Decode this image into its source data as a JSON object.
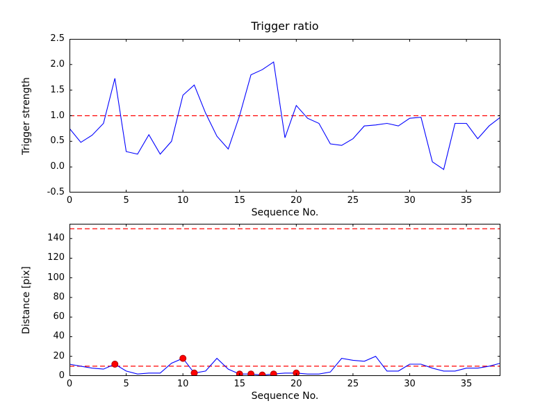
{
  "figure": {
    "bg": "#ffffff",
    "axis_color": "#000000",
    "series_color": "#0000ff",
    "threshold_color": "#ff0000",
    "marker_fill": "#ff0000",
    "marker_edge": "#aa0000"
  },
  "chart_data": [
    {
      "type": "line",
      "title": "Trigger ratio",
      "xlabel": "Sequence No.",
      "ylabel": "Trigger strength",
      "xlim": [
        0,
        38
      ],
      "ylim": [
        -0.5,
        2.5
      ],
      "grid": false,
      "legend": null,
      "xticks": [
        0,
        5,
        10,
        15,
        20,
        25,
        30,
        35
      ],
      "xticklabels": [
        "0",
        "5",
        "10",
        "15",
        "20",
        "25",
        "30",
        "35"
      ],
      "yticks": [
        -0.5,
        0.0,
        0.5,
        1.0,
        1.5,
        2.0,
        2.5
      ],
      "yticklabels": [
        "-0.5",
        "0.0",
        "0.5",
        "1.0",
        "1.5",
        "2.0",
        "2.5"
      ],
      "thresholds": [
        1.0
      ],
      "x": [
        0,
        1,
        2,
        3,
        4,
        5,
        6,
        7,
        8,
        9,
        10,
        11,
        12,
        13,
        14,
        15,
        16,
        17,
        18,
        19,
        20,
        21,
        22,
        23,
        24,
        25,
        26,
        27,
        28,
        29,
        30,
        31,
        32,
        33,
        34,
        35,
        36,
        37,
        38
      ],
      "y": [
        0.75,
        0.48,
        0.62,
        0.85,
        1.73,
        0.3,
        0.25,
        0.63,
        0.25,
        0.5,
        1.4,
        1.6,
        1.05,
        0.6,
        0.35,
        1.0,
        1.8,
        1.9,
        2.05,
        0.57,
        1.2,
        0.95,
        0.85,
        0.45,
        0.42,
        0.55,
        0.8,
        0.82,
        0.85,
        0.8,
        0.95,
        0.97,
        0.1,
        -0.05,
        0.85,
        0.85,
        0.55,
        0.8,
        0.97
      ]
    },
    {
      "type": "line",
      "title": "",
      "xlabel": "Sequence No.",
      "ylabel": "Distance [pix]",
      "xlim": [
        0,
        38
      ],
      "ylim": [
        0,
        155
      ],
      "grid": false,
      "legend": null,
      "xticks": [
        0,
        5,
        10,
        15,
        20,
        25,
        30,
        35
      ],
      "xticklabels": [
        "0",
        "5",
        "10",
        "15",
        "20",
        "25",
        "30",
        "35"
      ],
      "yticks": [
        0,
        20,
        40,
        60,
        80,
        100,
        120,
        140
      ],
      "yticklabels": [
        "0",
        "20",
        "40",
        "60",
        "80",
        "100",
        "120",
        "140"
      ],
      "thresholds": [
        150,
        10
      ],
      "x": [
        0,
        1,
        2,
        3,
        4,
        5,
        6,
        7,
        8,
        9,
        10,
        11,
        12,
        13,
        14,
        15,
        16,
        17,
        18,
        19,
        20,
        21,
        22,
        23,
        24,
        25,
        26,
        27,
        28,
        29,
        30,
        31,
        32,
        33,
        34,
        35,
        36,
        37,
        38
      ],
      "y": [
        12,
        10,
        8,
        7,
        12,
        5,
        2,
        3,
        3,
        13,
        18,
        3,
        5,
        18,
        7,
        2,
        2,
        1,
        2,
        3,
        3,
        2,
        2,
        4,
        18,
        16,
        15,
        20,
        5,
        5,
        12,
        12,
        8,
        5,
        5,
        8,
        8,
        10,
        13
      ],
      "markers": {
        "x": [
          4,
          10,
          11,
          15,
          16,
          17,
          18,
          20
        ],
        "y": [
          12,
          18,
          3,
          2,
          2,
          1,
          2,
          3
        ]
      }
    }
  ]
}
